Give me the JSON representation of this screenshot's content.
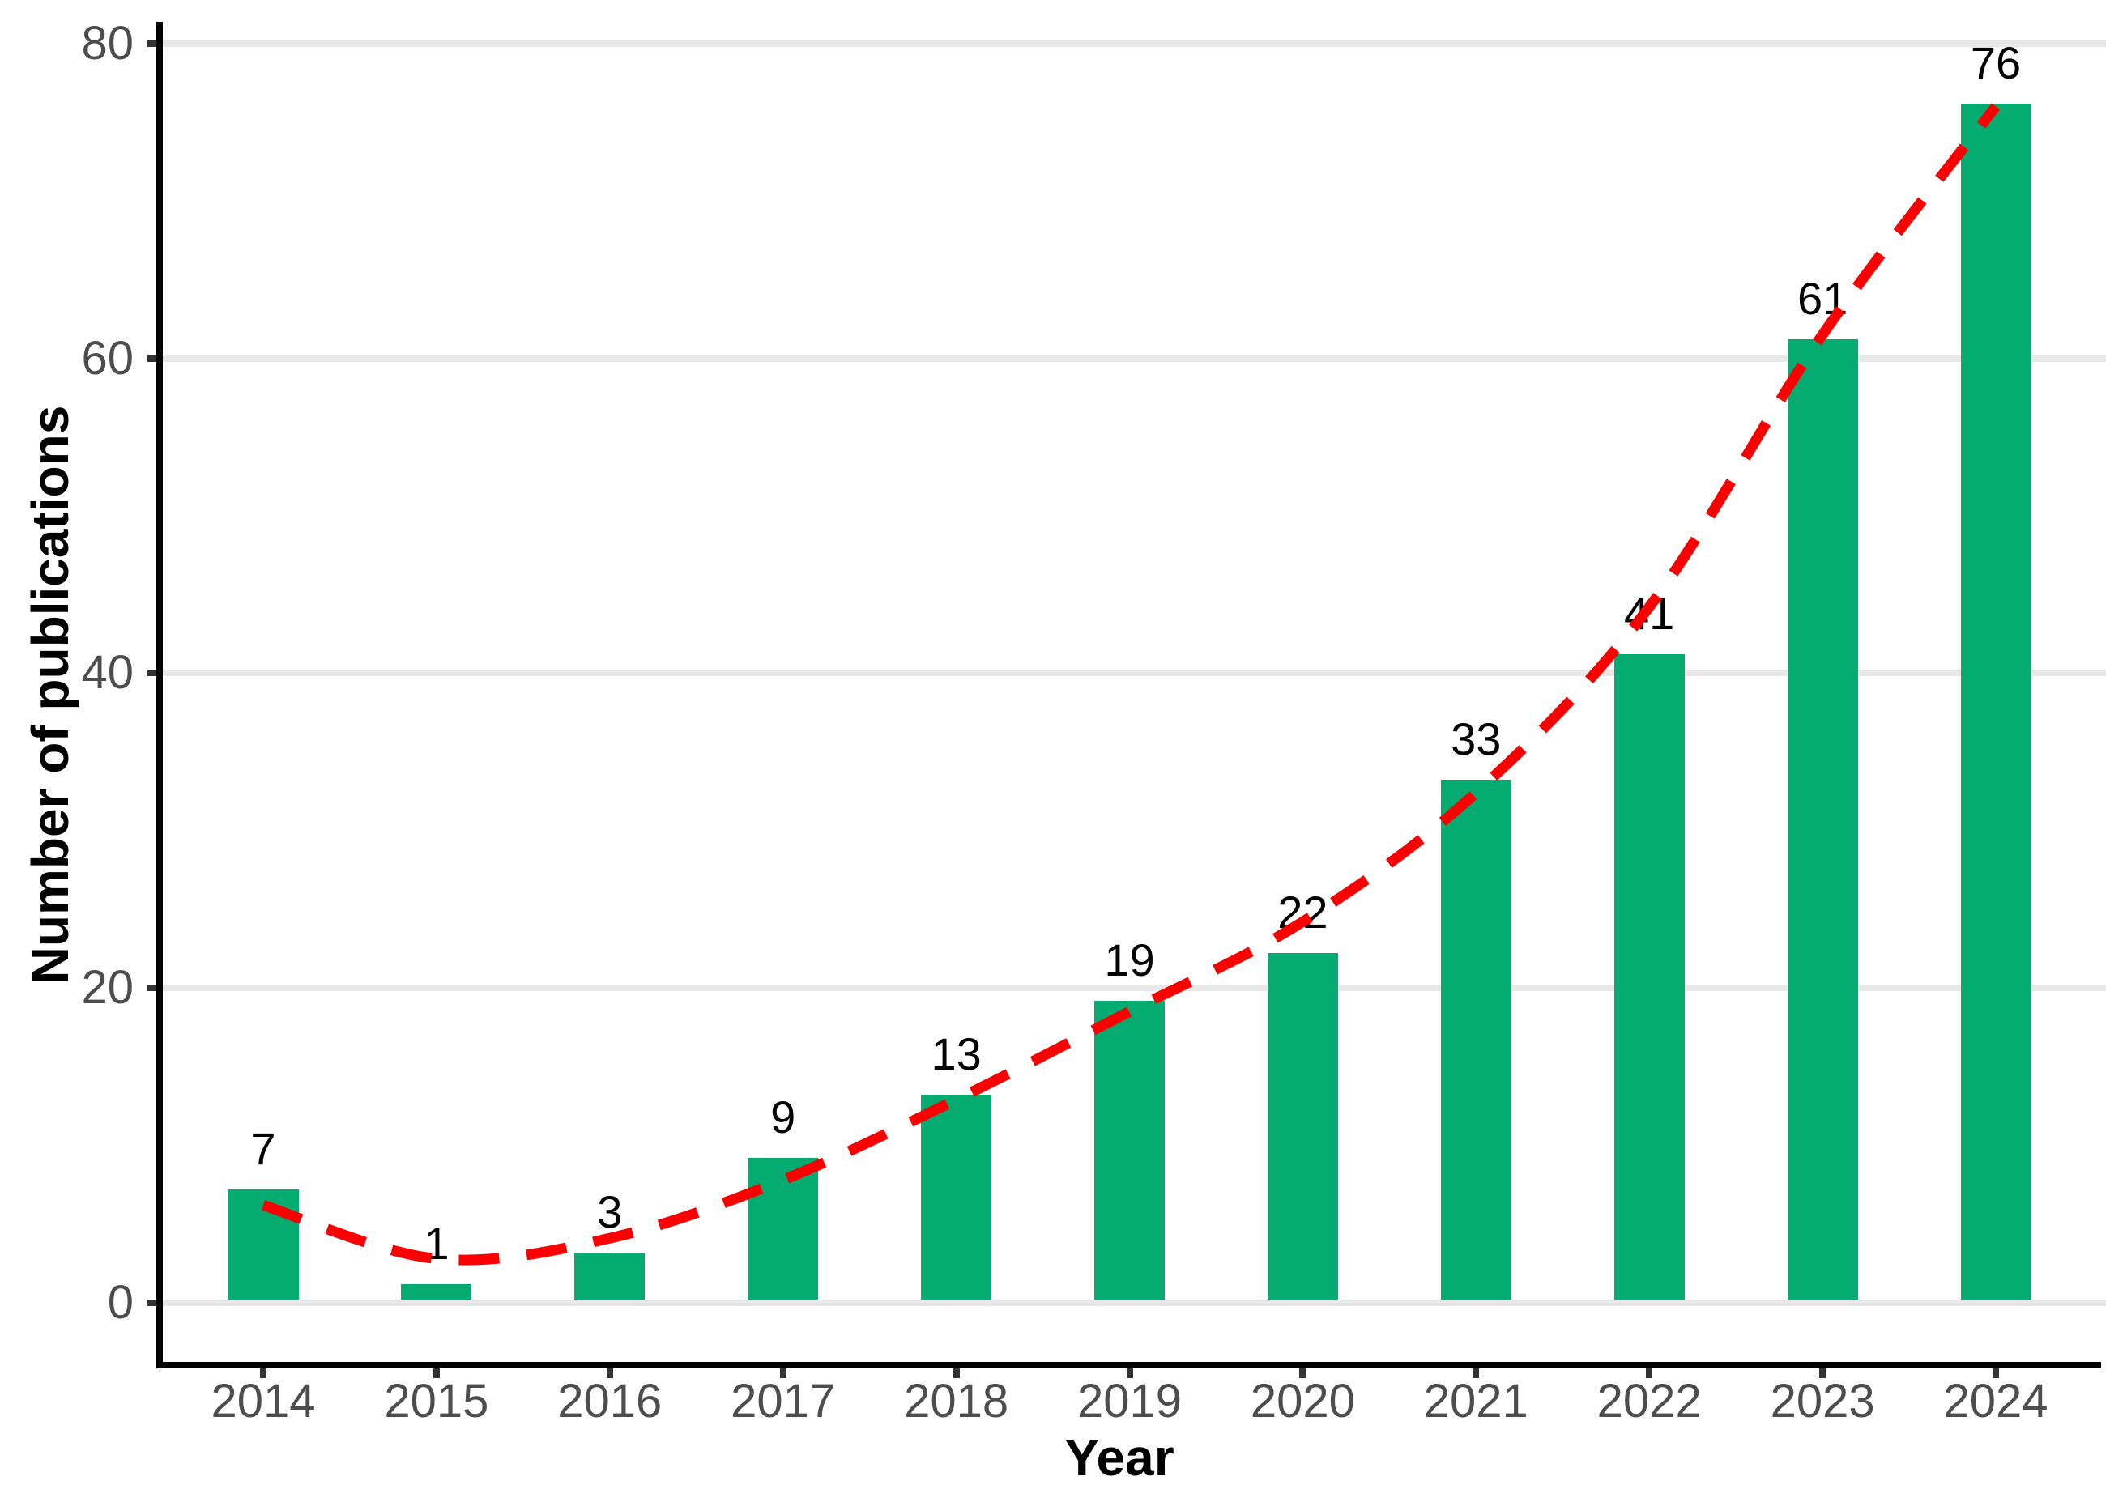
{
  "chart_data": {
    "type": "bar",
    "title": "",
    "categories": [
      "2014",
      "2015",
      "2016",
      "2017",
      "2018",
      "2019",
      "2020",
      "2021",
      "2022",
      "2023",
      "2024"
    ],
    "values": [
      7,
      1,
      3,
      9,
      13,
      19,
      22,
      33,
      41,
      61,
      76
    ],
    "bar_value_labels": [
      "7",
      "1",
      "3",
      "9",
      "13",
      "19",
      "22",
      "33",
      "41",
      "61",
      "76"
    ],
    "xlabel": "Year",
    "ylabel": "Number of publications",
    "ylim": [
      0,
      80
    ],
    "yticks": [
      0,
      20,
      40,
      60,
      80
    ],
    "ytick_labels": [
      "0",
      "20",
      "40",
      "60",
      "80"
    ],
    "grid": "horizontal-major-only",
    "legend": "none",
    "colors": {
      "bar": "#05AB70",
      "trend": "#FA0000",
      "gridline": "#E8E8E8",
      "axis_line": "#000000",
      "tick_mark": "#333333",
      "tick_label": "#4D4D4D",
      "value_label": "#000000",
      "background": "#FFFFFF"
    },
    "trend_line": {
      "style": "dashed",
      "description": "smooth fitted curve, dips after 2014 then rises exponentially",
      "points": [
        [
          2014,
          6.0
        ],
        [
          2015,
          2.6
        ],
        [
          2016,
          3.9
        ],
        [
          2017,
          7.6
        ],
        [
          2018,
          12.7
        ],
        [
          2019,
          18.3
        ],
        [
          2020,
          24.0
        ],
        [
          2021,
          32.2
        ],
        [
          2022,
          44.0
        ],
        [
          2023,
          61.3
        ],
        [
          2024,
          75.8
        ]
      ]
    }
  }
}
